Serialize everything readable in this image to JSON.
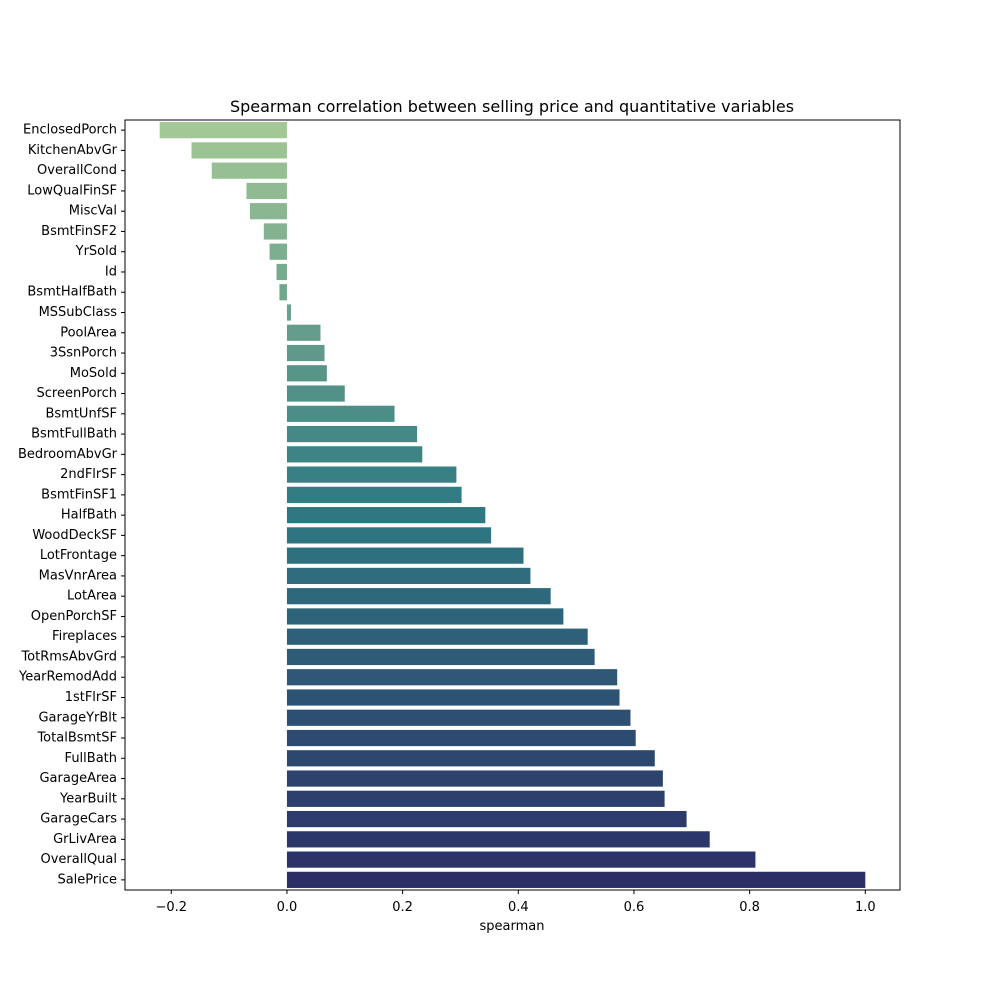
{
  "chart_data": {
    "type": "bar",
    "orientation": "horizontal",
    "title": "Spearman correlation between selling price and quantitative variables",
    "xlabel": "spearman",
    "ylabel": "",
    "xlim": [
      -0.28,
      1.06
    ],
    "xticks": [
      -0.2,
      0.0,
      0.2,
      0.4,
      0.6,
      0.8,
      1.0
    ],
    "xtick_labels": [
      "−0.2",
      "0.0",
      "0.2",
      "0.4",
      "0.6",
      "0.8",
      "1.0"
    ],
    "grid": false,
    "legend": "none",
    "palette": {
      "start": "#a3c795",
      "mid": "#2f7a83",
      "end": "#2c2f66"
    },
    "categories": [
      "EnclosedPorch",
      "KitchenAbvGr",
      "OverallCond",
      "LowQualFinSF",
      "MiscVal",
      "BsmtFinSF2",
      "YrSold",
      "Id",
      "BsmtHalfBath",
      "MSSubClass",
      "PoolArea",
      "3SsnPorch",
      "MoSold",
      "ScreenPorch",
      "BsmtUnfSF",
      "BsmtFullBath",
      "BedroomAbvGr",
      "2ndFlrSF",
      "BsmtFinSF1",
      "HalfBath",
      "WoodDeckSF",
      "LotFrontage",
      "MasVnrArea",
      "LotArea",
      "OpenPorchSF",
      "Fireplaces",
      "TotRmsAbvGrd",
      "YearRemodAdd",
      "1stFlrSF",
      "GarageYrBlt",
      "TotalBsmtSF",
      "FullBath",
      "GarageArea",
      "YearBuilt",
      "GarageCars",
      "GrLivArea",
      "OverallQual",
      "SalePrice"
    ],
    "values": [
      -0.22,
      -0.165,
      -0.13,
      -0.07,
      -0.064,
      -0.04,
      -0.03,
      -0.018,
      -0.013,
      0.007,
      0.058,
      0.065,
      0.069,
      0.1,
      0.186,
      0.225,
      0.234,
      0.293,
      0.302,
      0.343,
      0.353,
      0.409,
      0.421,
      0.456,
      0.478,
      0.52,
      0.532,
      0.571,
      0.575,
      0.594,
      0.603,
      0.636,
      0.65,
      0.653,
      0.691,
      0.731,
      0.81,
      1.0
    ]
  }
}
